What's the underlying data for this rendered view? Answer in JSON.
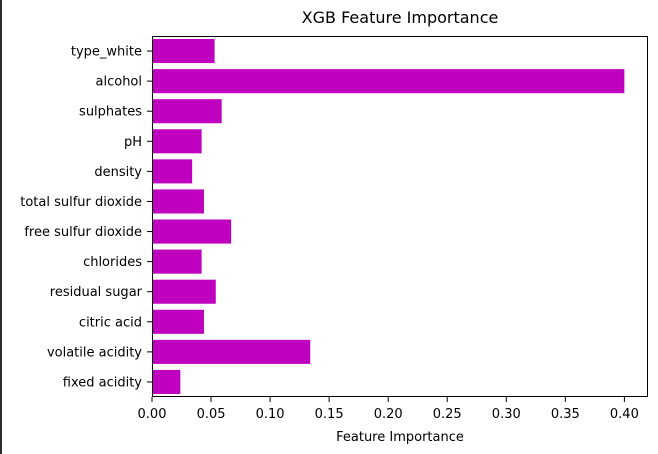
{
  "colors": {
    "bar": "#bf00bf",
    "axis": "#000000",
    "background": "#ffffff"
  },
  "chart_data": {
    "type": "bar",
    "orientation": "horizontal",
    "title": "XGB Feature Importance",
    "xlabel": "Feature Importance",
    "ylabel": "",
    "categories": [
      "fixed acidity",
      "volatile acidity",
      "citric acid",
      "residual sugar",
      "chlorides",
      "free sulfur dioxide",
      "total sulfur dioxide",
      "density",
      "pH",
      "sulphates",
      "alcohol",
      "type_white"
    ],
    "values": [
      0.024,
      0.134,
      0.044,
      0.054,
      0.042,
      0.067,
      0.044,
      0.034,
      0.042,
      0.059,
      0.4,
      0.053
    ],
    "xlim": [
      0.0,
      0.42
    ],
    "xticks": [
      0.0,
      0.05,
      0.1,
      0.15,
      0.2,
      0.25,
      0.3,
      0.35,
      0.4
    ],
    "xtick_labels": [
      "0.00",
      "0.05",
      "0.10",
      "0.15",
      "0.20",
      "0.25",
      "0.30",
      "0.35",
      "0.40"
    ],
    "grid": false,
    "legend": "none"
  }
}
